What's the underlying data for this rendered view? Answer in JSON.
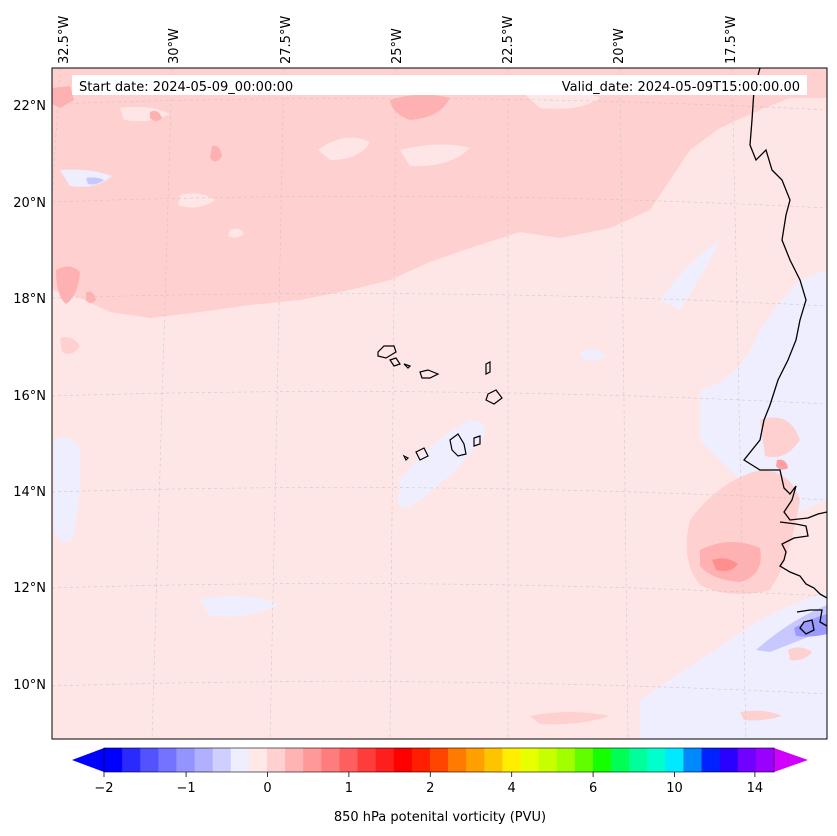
{
  "map": {
    "start_label": "Start date: 2024-05-09_00:00:00",
    "valid_label": "Valid_date: 2024-05-09T15:00:00.00",
    "lon_labels": [
      "32.5°W",
      "30°W",
      "27.5°W",
      "25°W",
      "22.5°W",
      "20°W",
      "17.5°W"
    ],
    "lat_labels": [
      "22°N",
      "20°N",
      "18°N",
      "16°N",
      "14°N",
      "12°N",
      "10°N"
    ],
    "lat_values": [
      22,
      20,
      18,
      16,
      14,
      12,
      10
    ],
    "lon_values": [
      -32.5,
      -30,
      -27.5,
      -25,
      -22.5,
      -20,
      -17.5
    ]
  },
  "colorbar": {
    "label": "850 hPa potenital vorticity (PVU)",
    "tick_labels": [
      "−2",
      "−1",
      "0",
      "1",
      "2",
      "4",
      "6",
      "10",
      "14"
    ],
    "colors": [
      "#0000ff",
      "#2a2aff",
      "#5252ff",
      "#7373ff",
      "#9494ff",
      "#b0b0ff",
      "#cfcfff",
      "#eeeeff",
      "#ffe8e8",
      "#ffd0d0",
      "#ffb4b4",
      "#ff9898",
      "#ff7c7c",
      "#ff5e5e",
      "#ff3c3c",
      "#ff1e1e",
      "#ff0000",
      "#ff1f00",
      "#ff4500",
      "#ff7a00",
      "#ff9f00",
      "#ffc400",
      "#ffee00",
      "#e8ff00",
      "#c8ff00",
      "#a2ff00",
      "#60ff00",
      "#14ff00",
      "#00ff55",
      "#00ff9a",
      "#00ffcc",
      "#00eaff",
      "#0088ff",
      "#0022ff",
      "#2a00ff",
      "#7000ff",
      "#9a00ff"
    ],
    "extend_min_color": "#0000ff",
    "extend_max_color": "#d000ff"
  },
  "colors": {
    "background_field": "#ffe6e6",
    "light_positive": "#ffd0d0",
    "medium_positive": "#ffb0b0",
    "strong_positive": "#ff8f8f",
    "light_negative": "#eeeeff",
    "medium_negative": "#c8c8ff",
    "strong_negative": "#9a9aff",
    "coastline": "#000000",
    "grid": "#c8c8c8"
  }
}
